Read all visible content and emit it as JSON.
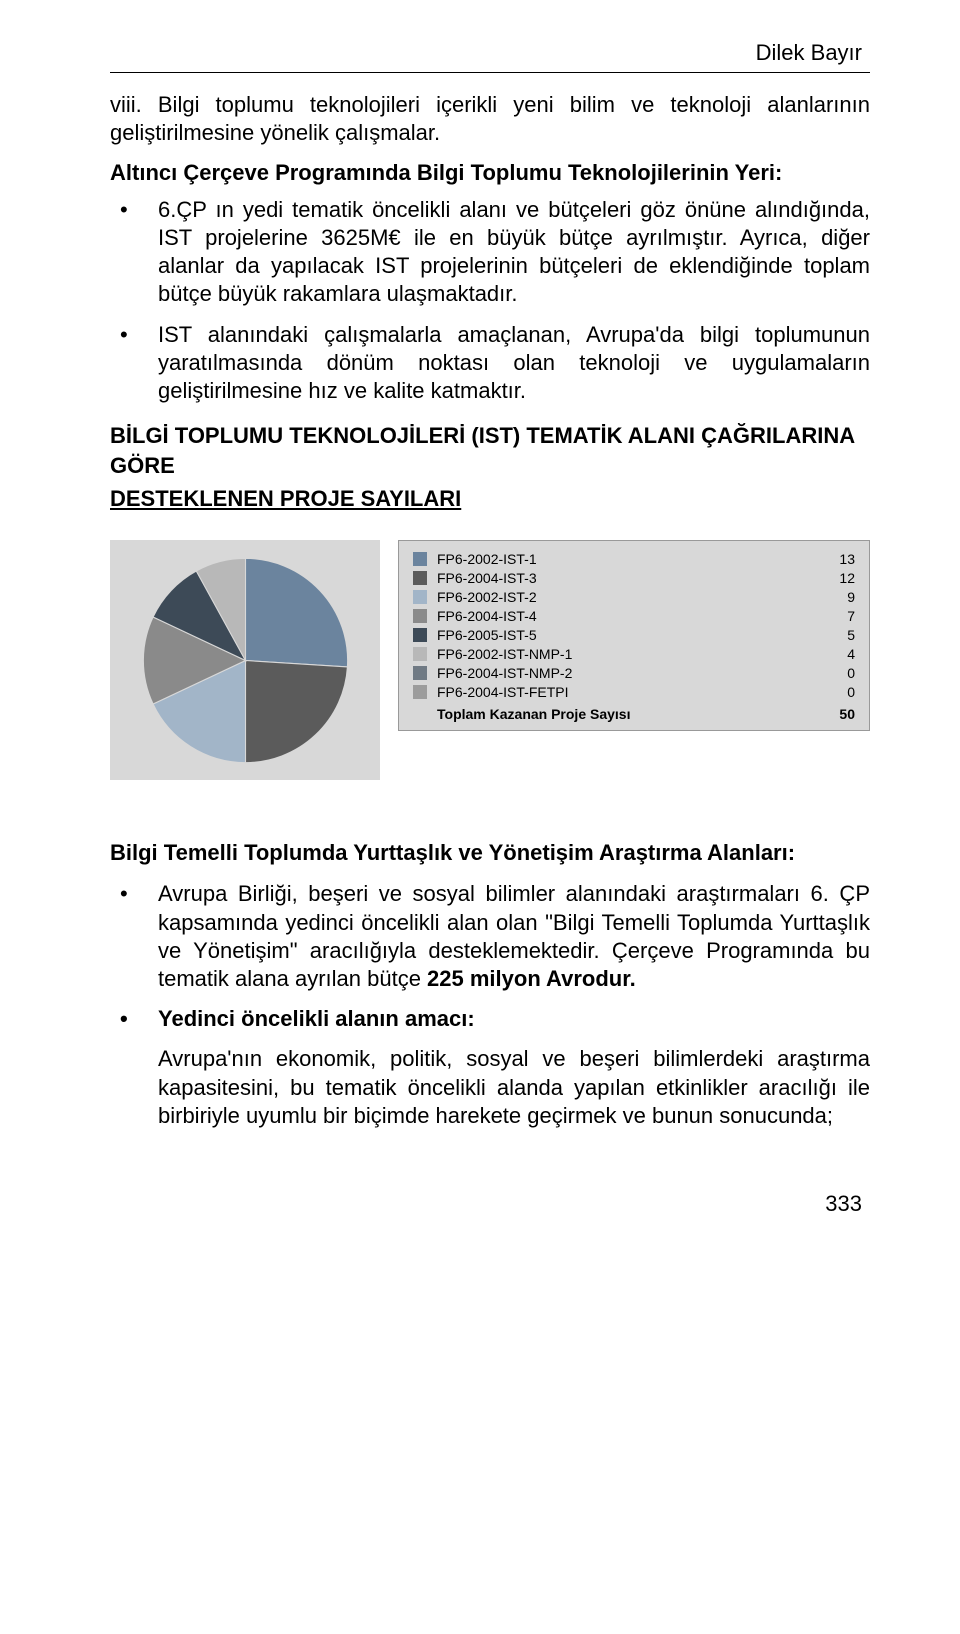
{
  "author": "Dilek Bayır",
  "item8": "viii. Bilgi toplumu teknolojileri içerikli yeni bilim ve teknoloji alanlarının geliştirilmesine yönelik çalışmalar.",
  "subheading1": "Altıncı Çerçeve Programında Bilgi Toplumu Teknolojilerinin Yeri:",
  "b1": "6.ÇP ın yedi tematik öncelikli alanı ve bütçeleri göz önüne alındığında, IST projelerine 3625M€ ile en büyük bütçe ayrılmıştır. Ayrıca, diğer alanlar da yapılacak IST projelerinin bütçeleri de eklendiğinde toplam bütçe büyük rakamlara ulaşmaktadır.",
  "b2": "IST alanındaki çalışmalarla amaçlanan, Avrupa'da bilgi toplumunun yaratılmasında dönüm noktası olan teknoloji ve uygulamaların geliştirilmesine hız ve kalite katmaktır.",
  "bigHeading1": "BİLGİ TOPLUMU TEKNOLOJİLERİ (IST) TEMATİK ALANI ÇAĞRILARINA GÖRE",
  "underlineHeading": "DESTEKLENEN PROJE SAYILARI",
  "chart": {
    "type": "pie",
    "background_color": "#d8d8d8",
    "legend": [
      {
        "label": "FP6-2002-IST-1",
        "value": 13,
        "color": "#6b849e"
      },
      {
        "label": "FP6-2004-IST-3",
        "value": 12,
        "color": "#5b5b5b"
      },
      {
        "label": "FP6-2002-IST-2",
        "value": 9,
        "color": "#a2b5c8"
      },
      {
        "label": "FP6-2004-IST-4",
        "value": 7,
        "color": "#8a8a8a"
      },
      {
        "label": "FP6-2005-IST-5",
        "value": 5,
        "color": "#3d4a57"
      },
      {
        "label": "FP6-2002-IST-NMP-1",
        "value": 4,
        "color": "#b8b8b8"
      },
      {
        "label": "FP6-2004-IST-NMP-2",
        "value": 0,
        "color": "#707a84"
      },
      {
        "label": "FP6-2004-IST-FETPI",
        "value": 0,
        "color": "#9c9c9c"
      }
    ],
    "total_label": "Toplam Kazanan Proje Sayısı",
    "total_value": 50,
    "pie_start_angle": -90
  },
  "section2Title": "Bilgi Temelli Toplumda Yurttaşlık ve Yönetişim Araştırma Alanları:",
  "s2b1_a": "Avrupa Birliği, beşeri ve sosyal bilimler alanındaki araştırmaları 6. ÇP kapsamında yedinci öncelikli alan olan \"Bilgi Temelli Toplumda Yurttaşlık ve Yönetişim\" aracılığıyla desteklemektedir. Çerçeve Programında bu tematik alana ayrılan bütçe ",
  "s2b1_bold": "225 milyon Avrodur.",
  "s2b2": "Yedinci öncelikli alanın amacı:",
  "s2nested": "Avrupa'nın ekonomik, politik, sosyal ve beşeri bilimlerdeki araştırma kapasitesini, bu tematik öncelikli alanda yapılan etkinlikler aracılığı ile birbiriyle uyumlu bir biçimde harekete geçirmek ve bunun sonucunda;",
  "pageNumber": "333"
}
